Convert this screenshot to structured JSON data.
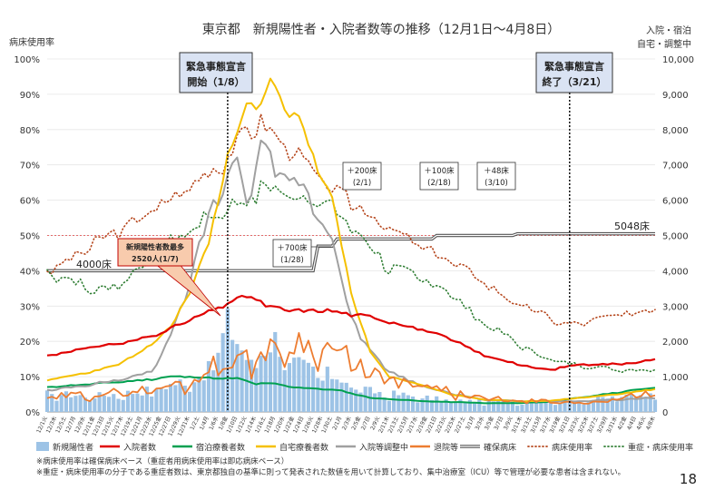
{
  "title": "東京都　新規陽性者・入院者数等の推移（12月1日〜4月8日）",
  "page_number": "18",
  "axis_left_title": "病床使用率",
  "axis_right_title_1": "入院・宿泊",
  "axis_right_title_2": "自宅・調整中",
  "notes": [
    "※病床使用率は確保病床ベース（重症者用病床使用率は即応病床ベース）",
    "※重症・病床使用率の分子である重症者数は、東京都独自の基準に則って発表された数値を用いて計算しており、集中治療室（ICU）等で管理が必要な患者は含まれない。"
  ],
  "annotations": {
    "emergency_start": "緊急事態宣言\n開始（1/8）",
    "emergency_end": "緊急事態宣言\n終了（3/21）",
    "peak_label": "新規陽性者数最多\n2520人(1/7)",
    "beds_4000": "4000床",
    "beds_5048": "5048床",
    "plus_700": "＋700床\n(1/28)",
    "plus_200": "＋200床\n(2/1)",
    "plus_100": "＋100床\n(2/18)",
    "plus_48": "＋48床\n(3/10)"
  },
  "chart_data": {
    "type": "bar+line",
    "ylim_left": [
      0,
      100
    ],
    "ylim_right": [
      0,
      10000
    ],
    "y_left_ticks": [
      "0%",
      "10%",
      "20%",
      "30%",
      "40%",
      "50%",
      "60%",
      "70%",
      "80%",
      "90%",
      "100%"
    ],
    "y_right_ticks": [
      "0",
      "1,000",
      "2,000",
      "3,000",
      "4,000",
      "5,000",
      "6,000",
      "7,000",
      "8,000",
      "9,000",
      "10,000"
    ],
    "x_tick_labels": [
      "12/1火",
      "12/3木",
      "12/5土",
      "12/7月",
      "12/9水",
      "12/11金",
      "12/13日",
      "12/15火",
      "12/17木",
      "12/19土",
      "12/21月",
      "12/23水",
      "12/25金",
      "12/27日",
      "12/29火",
      "12/31木",
      "1/2土",
      "1/4月",
      "1/6水",
      "1/8金",
      "1/10日",
      "1/12火",
      "1/14木",
      "1/16土",
      "1/18月",
      "1/20水",
      "1/22金",
      "1/24日",
      "1/26火",
      "1/28木",
      "1/30土",
      "2/1月",
      "2/3水",
      "2/5金",
      "2/7日",
      "2/9火",
      "2/11木",
      "2/13土",
      "2/15月",
      "2/17水",
      "2/19金",
      "2/21日",
      "2/23火",
      "2/25木",
      "2/27土",
      "3/1月",
      "3/3水",
      "3/5金",
      "3/7日",
      "3/9火",
      "3/11木",
      "3/13土",
      "3/15月",
      "3/17水",
      "3/19金",
      "3/21日",
      "3/23火",
      "3/25木",
      "3/27土",
      "3/29月",
      "3/31水",
      "4/2金",
      "4/4日",
      "4/6火",
      "4/8木"
    ],
    "emergency_start_index": 38,
    "emergency_end_index": 110,
    "legend": [
      {
        "label": "新規陽性者",
        "color": "#9dc3e6",
        "kind": "bar"
      },
      {
        "label": "入院者数",
        "color": "#e00000",
        "kind": "line"
      },
      {
        "label": "宿泊療養者数",
        "color": "#00a050",
        "kind": "line"
      },
      {
        "label": "自宅療養者数",
        "color": "#f5c000",
        "kind": "line"
      },
      {
        "label": "入院等調整中",
        "color": "#a0a0a0",
        "kind": "line"
      },
      {
        "label": "退院等",
        "color": "#ed7d31",
        "kind": "line"
      },
      {
        "label": "確保病床",
        "color": "#555555",
        "kind": "double"
      },
      {
        "label": "病床使用率",
        "color": "#b5451b",
        "kind": "dotted"
      },
      {
        "label": "重症・病床使用率",
        "color": "#2e7d32",
        "kind": "dotted"
      }
    ],
    "series_keypoints": {
      "new_cases": [
        [
          0,
          500
        ],
        [
          10,
          440
        ],
        [
          20,
          560
        ],
        [
          30,
          870
        ],
        [
          35,
          1200
        ],
        [
          37,
          2520
        ],
        [
          38,
          2390
        ],
        [
          42,
          1480
        ],
        [
          45,
          1600
        ],
        [
          48,
          2000
        ],
        [
          52,
          1300
        ],
        [
          58,
          1050
        ],
        [
          62,
          930
        ],
        [
          66,
          600
        ],
        [
          72,
          500
        ],
        [
          78,
          420
        ],
        [
          85,
          300
        ],
        [
          95,
          280
        ],
        [
          105,
          300
        ],
        [
          112,
          320
        ],
        [
          120,
          400
        ],
        [
          125,
          500
        ],
        [
          128,
          550
        ]
      ],
      "hospitalized": [
        [
          0,
          1600
        ],
        [
          6,
          1750
        ],
        [
          10,
          1850
        ],
        [
          18,
          2000
        ],
        [
          24,
          2250
        ],
        [
          30,
          2600
        ],
        [
          36,
          2950
        ],
        [
          40,
          3200
        ],
        [
          43,
          3300
        ],
        [
          46,
          3000
        ],
        [
          50,
          2900
        ],
        [
          55,
          2850
        ],
        [
          58,
          2900
        ],
        [
          62,
          2800
        ],
        [
          68,
          2700
        ],
        [
          74,
          2500
        ],
        [
          80,
          2300
        ],
        [
          86,
          2000
        ],
        [
          92,
          1600
        ],
        [
          98,
          1400
        ],
        [
          102,
          1250
        ],
        [
          106,
          1200
        ],
        [
          112,
          1350
        ],
        [
          118,
          1350
        ],
        [
          124,
          1400
        ],
        [
          128,
          1500
        ]
      ],
      "hotel": [
        [
          0,
          700
        ],
        [
          10,
          800
        ],
        [
          20,
          900
        ],
        [
          26,
          1000
        ],
        [
          30,
          1000
        ],
        [
          36,
          950
        ],
        [
          40,
          950
        ],
        [
          44,
          800
        ],
        [
          48,
          800
        ],
        [
          52,
          700
        ],
        [
          58,
          650
        ],
        [
          62,
          600
        ],
        [
          68,
          400
        ],
        [
          74,
          350
        ],
        [
          80,
          300
        ],
        [
          86,
          280
        ],
        [
          92,
          250
        ],
        [
          98,
          250
        ],
        [
          105,
          280
        ],
        [
          112,
          400
        ],
        [
          120,
          550
        ],
        [
          128,
          700
        ]
      ],
      "home": [
        [
          0,
          900
        ],
        [
          8,
          1100
        ],
        [
          14,
          1300
        ],
        [
          20,
          1700
        ],
        [
          26,
          2400
        ],
        [
          30,
          3400
        ],
        [
          34,
          4800
        ],
        [
          38,
          7200
        ],
        [
          42,
          8800
        ],
        [
          45,
          8600
        ],
        [
          47,
          9400
        ],
        [
          50,
          8600
        ],
        [
          53,
          8400
        ],
        [
          56,
          7200
        ],
        [
          60,
          6000
        ],
        [
          64,
          3400
        ],
        [
          68,
          1700
        ],
        [
          72,
          1000
        ],
        [
          78,
          800
        ],
        [
          85,
          500
        ],
        [
          92,
          350
        ],
        [
          100,
          300
        ],
        [
          106,
          320
        ],
        [
          112,
          400
        ],
        [
          120,
          500
        ],
        [
          128,
          650
        ]
      ],
      "adjusting": [
        [
          0,
          600
        ],
        [
          10,
          800
        ],
        [
          16,
          900
        ],
        [
          22,
          1200
        ],
        [
          26,
          2100
        ],
        [
          30,
          3800
        ],
        [
          34,
          5500
        ],
        [
          38,
          6800
        ],
        [
          40,
          7100
        ],
        [
          42,
          5800
        ],
        [
          44,
          7200
        ],
        [
          46,
          7600
        ],
        [
          48,
          6500
        ],
        [
          50,
          6800
        ],
        [
          53,
          6600
        ],
        [
          56,
          5600
        ],
        [
          58,
          5300
        ],
        [
          60,
          5000
        ],
        [
          62,
          3600
        ],
        [
          66,
          2100
        ],
        [
          70,
          1400
        ],
        [
          74,
          1000
        ],
        [
          80,
          700
        ],
        [
          86,
          500
        ],
        [
          92,
          350
        ],
        [
          100,
          300
        ],
        [
          110,
          300
        ],
        [
          120,
          350
        ],
        [
          128,
          400
        ]
      ],
      "discharged": [
        [
          0,
          400
        ],
        [
          10,
          500
        ],
        [
          20,
          600
        ],
        [
          30,
          800
        ],
        [
          34,
          1200
        ],
        [
          38,
          1500
        ],
        [
          42,
          1400
        ],
        [
          45,
          1700
        ],
        [
          48,
          1650
        ],
        [
          52,
          2000
        ],
        [
          55,
          1800
        ],
        [
          58,
          1900
        ],
        [
          62,
          1600
        ],
        [
          66,
          1200
        ],
        [
          70,
          1000
        ],
        [
          74,
          800
        ],
        [
          80,
          700
        ],
        [
          86,
          500
        ],
        [
          92,
          380
        ],
        [
          100,
          300
        ],
        [
          110,
          250
        ],
        [
          120,
          350
        ],
        [
          128,
          550
        ]
      ],
      "secured_beds": [
        [
          0,
          4000
        ],
        [
          56,
          4000
        ],
        [
          57,
          4700
        ],
        [
          60,
          4700
        ],
        [
          61,
          4900
        ],
        [
          81,
          4900
        ],
        [
          82,
          5000
        ],
        [
          98,
          5000
        ],
        [
          99,
          5048
        ],
        [
          128,
          5048
        ]
      ],
      "bed_rate": [
        [
          0,
          40
        ],
        [
          6,
          44
        ],
        [
          10,
          48
        ],
        [
          16,
          52
        ],
        [
          22,
          57
        ],
        [
          28,
          62
        ],
        [
          34,
          68
        ],
        [
          38,
          72
        ],
        [
          40,
          76
        ],
        [
          42,
          80
        ],
        [
          45,
          82
        ],
        [
          48,
          78
        ],
        [
          52,
          74
        ],
        [
          56,
          68
        ],
        [
          60,
          63
        ],
        [
          66,
          58
        ],
        [
          72,
          52
        ],
        [
          80,
          46
        ],
        [
          86,
          42
        ],
        [
          92,
          37
        ],
        [
          98,
          31
        ],
        [
          104,
          28
        ],
        [
          108,
          25
        ],
        [
          112,
          25
        ],
        [
          118,
          27
        ],
        [
          124,
          28
        ],
        [
          128,
          30
        ]
      ],
      "severe_rate": [
        [
          0,
          40
        ],
        [
          6,
          37
        ],
        [
          10,
          34
        ],
        [
          16,
          37
        ],
        [
          22,
          44
        ],
        [
          28,
          50
        ],
        [
          34,
          55
        ],
        [
          38,
          58
        ],
        [
          42,
          60
        ],
        [
          46,
          64
        ],
        [
          50,
          62
        ],
        [
          54,
          61
        ],
        [
          58,
          60
        ],
        [
          62,
          55
        ],
        [
          66,
          50
        ],
        [
          72,
          41
        ],
        [
          78,
          38
        ],
        [
          84,
          35
        ],
        [
          90,
          27
        ],
        [
          96,
          22
        ],
        [
          102,
          17
        ],
        [
          108,
          14
        ],
        [
          114,
          13
        ],
        [
          120,
          12
        ],
        [
          128,
          12
        ]
      ]
    }
  }
}
